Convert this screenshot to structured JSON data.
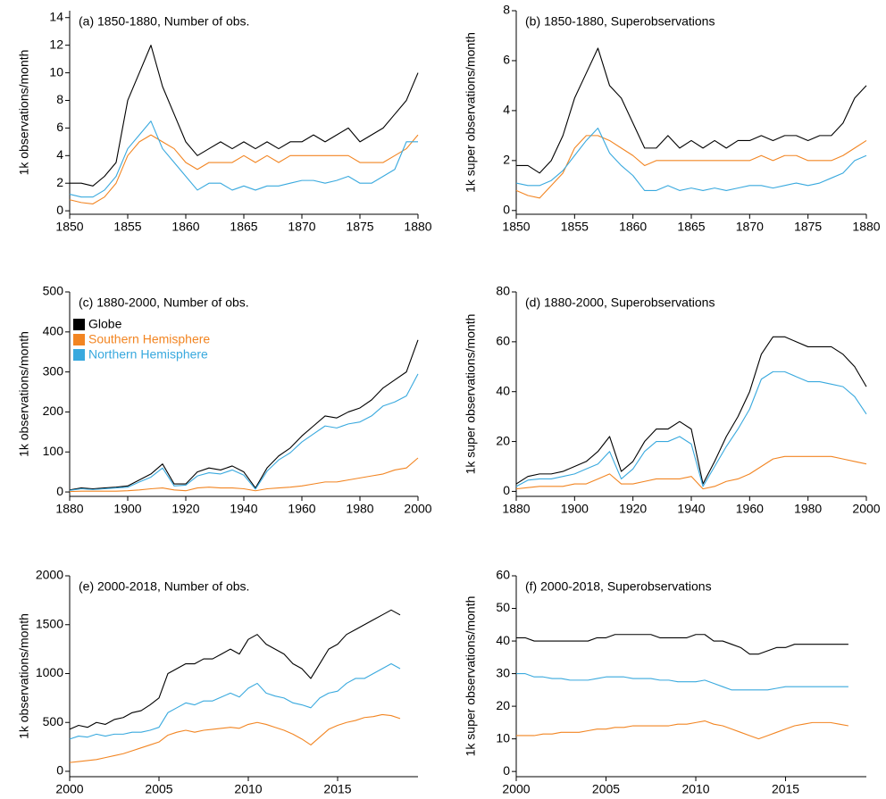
{
  "chart_data": [
    {
      "type": "line",
      "title": "(a) 1850-1880, Number of obs.",
      "ylabel": "1k observations/month",
      "x": [
        1850,
        1851,
        1852,
        1853,
        1854,
        1855,
        1856,
        1857,
        1858,
        1859,
        1860,
        1861,
        1862,
        1863,
        1864,
        1865,
        1866,
        1867,
        1868,
        1869,
        1870,
        1871,
        1872,
        1873,
        1874,
        1875,
        1876,
        1877,
        1878,
        1879,
        1880
      ],
      "series": [
        {
          "color": "#000000",
          "values": [
            2,
            2,
            1.8,
            2.5,
            3.5,
            8,
            10,
            12,
            9,
            7,
            5,
            4,
            4.5,
            5,
            4.5,
            5,
            4.5,
            5,
            4.5,
            5,
            5,
            5.5,
            5,
            5.5,
            6,
            5,
            5.5,
            6,
            7,
            8,
            10
          ]
        },
        {
          "color": "#f28522",
          "values": [
            0.8,
            0.6,
            0.5,
            1,
            2,
            4,
            5,
            5.5,
            5,
            4.5,
            3.5,
            3,
            3.5,
            3.5,
            3.5,
            4,
            3.5,
            4,
            3.5,
            4,
            4,
            4,
            4,
            4,
            4,
            3.5,
            3.5,
            3.5,
            4,
            4.5,
            5.5
          ]
        },
        {
          "color": "#39a9de",
          "values": [
            1.2,
            1,
            1,
            1.5,
            2.5,
            4.5,
            5.5,
            6.5,
            4.5,
            3.5,
            2.5,
            1.5,
            2,
            2,
            1.5,
            1.8,
            1.5,
            1.8,
            1.8,
            2,
            2.2,
            2.2,
            2,
            2.2,
            2.5,
            2,
            2,
            2.5,
            3,
            5,
            5
          ]
        }
      ],
      "xlim": [
        1850,
        1880
      ],
      "xticks": [
        1850,
        1855,
        1860,
        1865,
        1870,
        1875,
        1880
      ],
      "ylim": [
        -0.25,
        14.5
      ],
      "yticks": [
        0,
        2,
        4,
        6,
        8,
        10,
        12,
        14
      ]
    },
    {
      "type": "line",
      "title": "(b) 1850-1880, Superobservations",
      "ylabel": "1k super observations/month",
      "x": [
        1850,
        1851,
        1852,
        1853,
        1854,
        1855,
        1856,
        1857,
        1858,
        1859,
        1860,
        1861,
        1862,
        1863,
        1864,
        1865,
        1866,
        1867,
        1868,
        1869,
        1870,
        1871,
        1872,
        1873,
        1874,
        1875,
        1876,
        1877,
        1878,
        1879,
        1880
      ],
      "series": [
        {
          "color": "#000000",
          "values": [
            1.8,
            1.8,
            1.5,
            2,
            3,
            4.5,
            5.5,
            6.5,
            5,
            4.5,
            3.5,
            2.5,
            2.5,
            3,
            2.5,
            2.8,
            2.5,
            2.8,
            2.5,
            2.8,
            2.8,
            3,
            2.8,
            3,
            3,
            2.8,
            3,
            3,
            3.5,
            4.5,
            5
          ]
        },
        {
          "color": "#f28522",
          "values": [
            0.8,
            0.6,
            0.5,
            1,
            1.5,
            2.5,
            3,
            3,
            2.8,
            2.5,
            2.2,
            1.8,
            2,
            2,
            2,
            2,
            2,
            2,
            2,
            2,
            2,
            2.2,
            2,
            2.2,
            2.2,
            2,
            2,
            2,
            2.2,
            2.5,
            2.8
          ]
        },
        {
          "color": "#39a9de",
          "values": [
            1.1,
            1,
            1,
            1.2,
            1.6,
            2.2,
            2.8,
            3.3,
            2.3,
            1.8,
            1.4,
            0.8,
            0.8,
            1,
            0.8,
            0.9,
            0.8,
            0.9,
            0.8,
            0.9,
            1,
            1,
            0.9,
            1,
            1.1,
            1,
            1.1,
            1.3,
            1.5,
            2,
            2.2
          ]
        }
      ],
      "xlim": [
        1850,
        1880
      ],
      "xticks": [
        1850,
        1855,
        1860,
        1865,
        1870,
        1875,
        1880
      ],
      "ylim": [
        -0.15,
        8
      ],
      "yticks": [
        0,
        2,
        4,
        6,
        8
      ]
    },
    {
      "type": "line",
      "title": "(c) 1880-2000, Number of obs.",
      "ylabel": "1k observations/month",
      "x": [
        1880,
        1884,
        1888,
        1892,
        1896,
        1900,
        1904,
        1908,
        1912,
        1916,
        1920,
        1924,
        1928,
        1932,
        1936,
        1940,
        1944,
        1948,
        1952,
        1956,
        1960,
        1964,
        1968,
        1972,
        1976,
        1980,
        1984,
        1988,
        1992,
        1996,
        2000
      ],
      "series": [
        {
          "name": "Globe",
          "color": "#000000",
          "values": [
            5,
            10,
            8,
            10,
            12,
            15,
            30,
            45,
            70,
            20,
            20,
            50,
            60,
            55,
            65,
            50,
            10,
            60,
            90,
            110,
            140,
            165,
            190,
            185,
            200,
            210,
            230,
            260,
            280,
            300,
            380
          ]
        },
        {
          "name": "Southern Hemisphere",
          "color": "#f28522",
          "values": [
            1,
            2,
            2,
            2,
            2,
            3,
            5,
            8,
            10,
            5,
            3,
            10,
            12,
            10,
            10,
            8,
            3,
            8,
            10,
            12,
            15,
            20,
            25,
            25,
            30,
            35,
            40,
            45,
            55,
            60,
            85
          ]
        },
        {
          "name": "Northern Hemisphere",
          "color": "#39a9de",
          "values": [
            4,
            8,
            6,
            8,
            10,
            12,
            25,
            37,
            60,
            15,
            17,
            40,
            48,
            45,
            55,
            42,
            7,
            52,
            80,
            98,
            125,
            145,
            165,
            160,
            170,
            175,
            190,
            215,
            225,
            240,
            295
          ]
        }
      ],
      "xlim": [
        1880,
        2000
      ],
      "xticks": [
        1880,
        1900,
        1920,
        1940,
        1960,
        1980,
        2000
      ],
      "ylim": [
        -11,
        500
      ],
      "yticks": [
        0,
        100,
        200,
        300,
        400,
        500
      ]
    },
    {
      "type": "line",
      "title": "(d) 1880-2000, Superobservations",
      "ylabel": "1k super observations/month",
      "x": [
        1880,
        1884,
        1888,
        1892,
        1896,
        1900,
        1904,
        1908,
        1912,
        1916,
        1920,
        1924,
        1928,
        1932,
        1936,
        1940,
        1944,
        1948,
        1952,
        1956,
        1960,
        1964,
        1968,
        1972,
        1976,
        1980,
        1984,
        1988,
        1992,
        1996,
        2000
      ],
      "series": [
        {
          "color": "#000000",
          "values": [
            3,
            6,
            7,
            7,
            8,
            10,
            12,
            16,
            22,
            8,
            12,
            20,
            25,
            25,
            28,
            25,
            3,
            12,
            22,
            30,
            40,
            55,
            62,
            62,
            60,
            58,
            58,
            58,
            55,
            50,
            42
          ]
        },
        {
          "color": "#f28522",
          "values": [
            1,
            1.5,
            2,
            2,
            2,
            3,
            3,
            5,
            7,
            3,
            3,
            4,
            5,
            5,
            5,
            6,
            1,
            2,
            4,
            5,
            7,
            10,
            13,
            14,
            14,
            14,
            14,
            14,
            13,
            12,
            11
          ]
        },
        {
          "color": "#39a9de",
          "values": [
            2,
            4.5,
            5,
            5,
            6,
            7,
            9,
            11,
            16,
            5,
            9,
            16,
            20,
            20,
            22,
            19,
            2,
            10,
            18,
            25,
            33,
            45,
            48,
            48,
            46,
            44,
            44,
            43,
            42,
            38,
            31
          ]
        }
      ],
      "xlim": [
        1880,
        2000
      ],
      "xticks": [
        1880,
        1900,
        1920,
        1940,
        1960,
        1980,
        2000
      ],
      "ylim": [
        -2,
        80
      ],
      "yticks": [
        0,
        20,
        40,
        60,
        80
      ]
    },
    {
      "type": "line",
      "title": "(e) 2000-2018, Number of obs.",
      "ylabel": "1k observations/month",
      "x": [
        2000,
        2000.5,
        2001,
        2001.5,
        2002,
        2002.5,
        2003,
        2003.5,
        2004,
        2004.5,
        2005,
        2005.5,
        2006,
        2006.5,
        2007,
        2007.5,
        2008,
        2008.5,
        2009,
        2009.5,
        2010,
        2010.5,
        2011,
        2011.5,
        2012,
        2012.5,
        2013,
        2013.5,
        2014,
        2014.5,
        2015,
        2015.5,
        2016,
        2016.5,
        2017,
        2017.5,
        2018,
        2018.5
      ],
      "series": [
        {
          "color": "#000000",
          "values": [
            430,
            470,
            450,
            500,
            480,
            530,
            550,
            600,
            620,
            680,
            750,
            1000,
            1050,
            1100,
            1100,
            1150,
            1150,
            1200,
            1250,
            1200,
            1350,
            1400,
            1300,
            1250,
            1200,
            1100,
            1050,
            950,
            1100,
            1250,
            1300,
            1400,
            1450,
            1500,
            1550,
            1600,
            1650,
            1600
          ]
        },
        {
          "color": "#f28522",
          "values": [
            90,
            100,
            110,
            120,
            140,
            160,
            180,
            210,
            240,
            270,
            300,
            370,
            400,
            420,
            400,
            420,
            430,
            440,
            450,
            440,
            480,
            500,
            480,
            450,
            420,
            380,
            330,
            270,
            350,
            430,
            470,
            500,
            520,
            550,
            560,
            580,
            570,
            540
          ]
        },
        {
          "color": "#39a9de",
          "values": [
            330,
            360,
            350,
            380,
            360,
            380,
            380,
            400,
            400,
            420,
            450,
            600,
            650,
            700,
            680,
            720,
            720,
            760,
            800,
            760,
            850,
            900,
            800,
            770,
            750,
            700,
            680,
            650,
            750,
            800,
            820,
            900,
            950,
            950,
            1000,
            1050,
            1100,
            1050
          ]
        }
      ],
      "xlim": [
        2000,
        2019.5
      ],
      "xticks": [
        2000,
        2005,
        2010,
        2015
      ],
      "ylim": [
        -55,
        2000
      ],
      "yticks": [
        0,
        500,
        1000,
        1500,
        2000
      ]
    },
    {
      "type": "line",
      "title": "(f) 2000-2018, Superobservations",
      "ylabel": "1k super observations/month",
      "x": [
        2000,
        2000.5,
        2001,
        2001.5,
        2002,
        2002.5,
        2003,
        2003.5,
        2004,
        2004.5,
        2005,
        2005.5,
        2006,
        2006.5,
        2007,
        2007.5,
        2008,
        2008.5,
        2009,
        2009.5,
        2010,
        2010.5,
        2011,
        2011.5,
        2012,
        2012.5,
        2013,
        2013.5,
        2014,
        2014.5,
        2015,
        2015.5,
        2016,
        2016.5,
        2017,
        2017.5,
        2018,
        2018.5
      ],
      "series": [
        {
          "color": "#000000",
          "values": [
            41,
            41,
            40,
            40,
            40,
            40,
            40,
            40,
            40,
            41,
            41,
            42,
            42,
            42,
            42,
            42,
            41,
            41,
            41,
            41,
            42,
            42,
            40,
            40,
            39,
            38,
            36,
            36,
            37,
            38,
            38,
            39,
            39,
            39,
            39,
            39,
            39,
            39
          ]
        },
        {
          "color": "#f28522",
          "values": [
            11,
            11,
            11,
            11.5,
            11.5,
            12,
            12,
            12,
            12.5,
            13,
            13,
            13.5,
            13.5,
            14,
            14,
            14,
            14,
            14,
            14.5,
            14.5,
            15,
            15.5,
            14.5,
            14,
            13,
            12,
            11,
            10,
            11,
            12,
            13,
            14,
            14.5,
            15,
            15,
            15,
            14.5,
            14
          ]
        },
        {
          "color": "#39a9de",
          "values": [
            30,
            30,
            29,
            29,
            28.5,
            28.5,
            28,
            28,
            28,
            28.5,
            29,
            29,
            29,
            28.5,
            28.5,
            28.5,
            28,
            28,
            27.5,
            27.5,
            27.5,
            28,
            27,
            26,
            25,
            25,
            25,
            25,
            25,
            25.5,
            26,
            26,
            26,
            26,
            26,
            26,
            26,
            26
          ]
        }
      ],
      "xlim": [
        2000,
        2019.5
      ],
      "xticks": [
        2000,
        2005,
        2010,
        2015
      ],
      "ylim": [
        -1.6,
        60
      ],
      "yticks": [
        0,
        10,
        20,
        30,
        40,
        50,
        60
      ]
    }
  ]
}
